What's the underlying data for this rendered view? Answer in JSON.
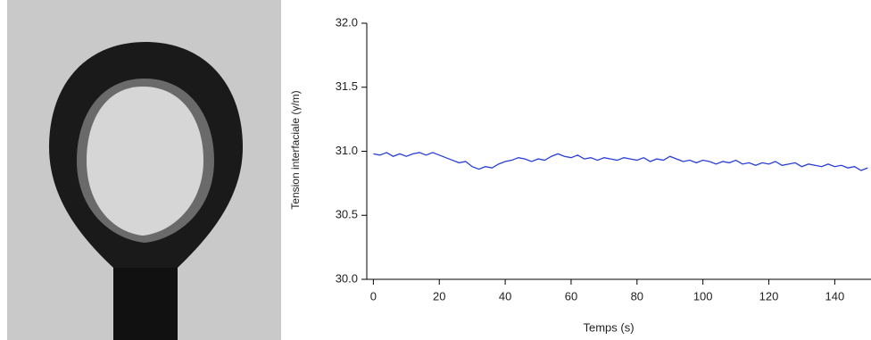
{
  "chart_data": {
    "type": "line",
    "xlabel": "Temps (s)",
    "ylabel": "Tension interfaciale (γ/m)",
    "x": [
      0,
      2,
      4,
      6,
      8,
      10,
      12,
      14,
      16,
      18,
      20,
      22,
      24,
      26,
      28,
      30,
      32,
      34,
      36,
      38,
      40,
      42,
      44,
      46,
      48,
      50,
      52,
      54,
      56,
      58,
      60,
      62,
      64,
      66,
      68,
      70,
      72,
      74,
      76,
      78,
      80,
      82,
      84,
      86,
      88,
      90,
      92,
      94,
      96,
      98,
      100,
      102,
      104,
      106,
      108,
      110,
      112,
      114,
      116,
      118,
      120,
      122,
      124,
      126,
      128,
      130,
      132,
      134,
      136,
      138,
      140,
      142,
      144,
      146,
      148,
      150
    ],
    "series": [
      {
        "color": "#2a3fd6",
        "values": [
          30.98,
          30.97,
          30.99,
          30.96,
          30.98,
          30.96,
          30.98,
          30.99,
          30.97,
          30.99,
          30.97,
          30.95,
          30.93,
          30.91,
          30.92,
          30.88,
          30.86,
          30.88,
          30.87,
          30.9,
          30.92,
          30.93,
          30.95,
          30.94,
          30.92,
          30.94,
          30.93,
          30.96,
          30.98,
          30.96,
          30.95,
          30.97,
          30.94,
          30.95,
          30.93,
          30.95,
          30.94,
          30.93,
          30.95,
          30.94,
          30.93,
          30.95,
          30.92,
          30.94,
          30.93,
          30.96,
          30.94,
          30.92,
          30.93,
          30.91,
          30.93,
          30.92,
          30.9,
          30.92,
          30.91,
          30.93,
          30.9,
          30.91,
          30.89,
          30.91,
          30.9,
          30.92,
          30.89,
          30.9,
          30.91,
          30.88,
          30.9,
          30.89,
          30.88,
          30.9,
          30.88,
          30.89,
          30.87,
          30.88,
          30.85,
          30.87
        ]
      }
    ],
    "xlim": [
      -2,
      151
    ],
    "ylim": [
      30.0,
      32.0
    ],
    "xticks": [
      0,
      20,
      40,
      60,
      80,
      100,
      120,
      140
    ],
    "yticks": [
      {
        "value": 30,
        "label": "30.0"
      },
      30.5,
      {
        "value": 31,
        "label": "31.0"
      },
      31.5,
      {
        "value": 32,
        "label": "32.0"
      }
    ]
  }
}
